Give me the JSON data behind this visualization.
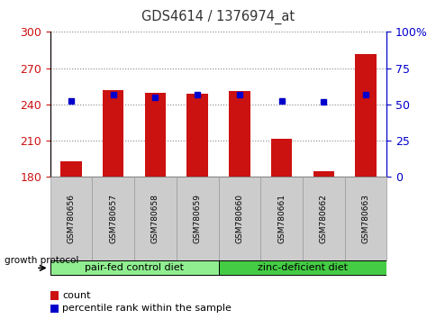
{
  "title": "GDS4614 / 1376974_at",
  "samples": [
    "GSM780656",
    "GSM780657",
    "GSM780658",
    "GSM780659",
    "GSM780660",
    "GSM780661",
    "GSM780662",
    "GSM780663"
  ],
  "count_values": [
    193,
    252,
    250,
    249,
    251,
    212,
    185,
    282
  ],
  "percentile_values": [
    243,
    248,
    246,
    248,
    248,
    243,
    242,
    248
  ],
  "ylim_left": [
    180,
    300
  ],
  "yticks_left": [
    180,
    210,
    240,
    270,
    300
  ],
  "ylim_right": [
    0,
    100
  ],
  "yticks_right": [
    0,
    25,
    50,
    75,
    100
  ],
  "bar_color": "#cc1111",
  "dot_color": "#0000cc",
  "bar_bottom": 180,
  "group1_label": "pair-fed control diet",
  "group2_label": "zinc-deficient diet",
  "group1_indices": [
    0,
    1,
    2,
    3
  ],
  "group2_indices": [
    4,
    5,
    6,
    7
  ],
  "group1_color": "#90ee90",
  "group2_color": "#44cc44",
  "growth_protocol_label": "growth protocol",
  "legend_count_label": "count",
  "legend_pct_label": "percentile rank within the sample",
  "ylabel_left_color": "#cc1111",
  "ylabel_right_color": "#0000cc",
  "title_color": "#333333",
  "grid_color": "#888888",
  "tick_label_area_color": "#cccccc",
  "bar_width": 0.5
}
